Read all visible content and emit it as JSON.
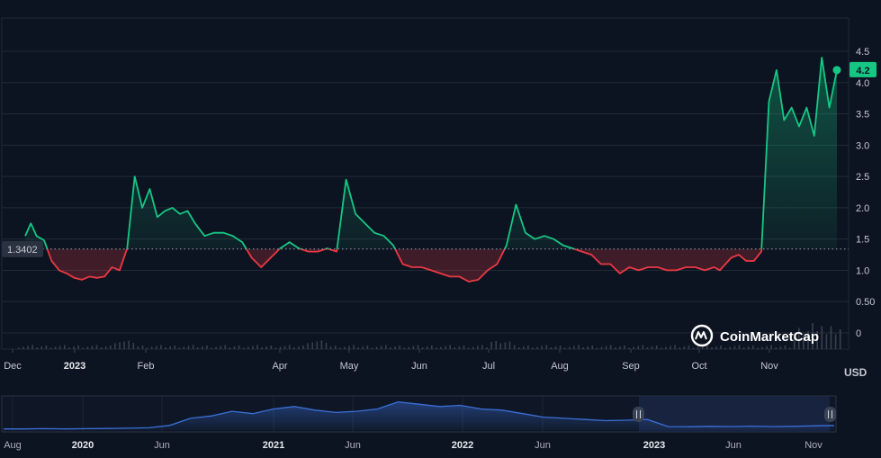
{
  "chart_data": {
    "type": "line",
    "unit": "USD",
    "reference_price": "1.3402",
    "current_price": "4.2",
    "colors": {
      "up": "#16c784",
      "down": "#ea3943",
      "background": "#0d1421",
      "grid": "#222a38",
      "navigator_line": "#3a6fd8"
    },
    "y_ticks": [
      "0",
      "0.50",
      "1.0",
      "1.5",
      "2.0",
      "2.5",
      "3.0",
      "3.5",
      "4.0",
      "4.5"
    ],
    "x_ticks": [
      {
        "label": "Dec",
        "bold": false
      },
      {
        "label": "2023",
        "bold": true
      },
      {
        "label": "Feb",
        "bold": false
      },
      {
        "label": "Apr",
        "bold": false
      },
      {
        "label": "May",
        "bold": false
      },
      {
        "label": "Jun",
        "bold": false
      },
      {
        "label": "Jul",
        "bold": false
      },
      {
        "label": "Aug",
        "bold": false
      },
      {
        "label": "Sep",
        "bold": false
      },
      {
        "label": "Oct",
        "bold": false
      },
      {
        "label": "Nov",
        "bold": false
      }
    ],
    "ylim": [
      0,
      4.7
    ],
    "x": [
      0,
      3,
      6,
      10,
      14,
      18,
      22,
      26,
      30,
      34,
      38,
      42,
      46,
      50,
      54,
      58,
      62,
      66,
      70,
      74,
      78,
      82,
      86,
      90,
      95,
      100,
      105,
      110,
      115,
      120,
      125,
      130,
      135,
      140,
      145,
      150,
      155,
      160,
      165,
      170,
      175,
      180,
      185,
      190,
      195,
      200,
      205,
      210,
      215,
      220,
      225,
      230,
      235,
      240,
      245,
      250,
      255,
      260,
      265,
      270,
      275,
      280,
      285,
      290,
      295,
      300,
      305,
      310,
      315,
      320,
      325,
      330,
      335,
      340,
      345,
      350,
      355,
      360,
      365,
      368,
      371,
      374,
      378,
      382,
      386,
      390,
      394,
      398,
      402,
      406,
      410,
      414,
      418,
      422,
      426,
      430
    ],
    "values": [
      1.55,
      1.75,
      1.55,
      1.48,
      1.15,
      1.0,
      0.95,
      0.88,
      0.85,
      0.9,
      0.88,
      0.9,
      1.05,
      1.0,
      1.35,
      2.5,
      2.0,
      2.3,
      1.85,
      1.95,
      2.0,
      1.9,
      1.95,
      1.75,
      1.55,
      1.6,
      1.6,
      1.55,
      1.45,
      1.2,
      1.05,
      1.2,
      1.35,
      1.45,
      1.35,
      1.3,
      1.3,
      1.35,
      1.3,
      2.45,
      1.9,
      1.75,
      1.6,
      1.55,
      1.4,
      1.1,
      1.05,
      1.05,
      1.0,
      0.95,
      0.9,
      0.9,
      0.82,
      0.85,
      1.0,
      1.1,
      1.4,
      2.05,
      1.6,
      1.5,
      1.55,
      1.5,
      1.4,
      1.35,
      1.3,
      1.25,
      1.1,
      1.1,
      0.95,
      1.05,
      1.0,
      1.05,
      1.05,
      1.0,
      1.0,
      1.05,
      1.05,
      1.0,
      1.05,
      1.0,
      1.1,
      1.2,
      1.25,
      1.15,
      1.15,
      1.3,
      3.7,
      4.2,
      3.4,
      3.6,
      3.3,
      3.6,
      3.15,
      4.4,
      3.6,
      4.2
    ],
    "volume_note": "",
    "navigator": {
      "x_ticks": [
        {
          "label": "Aug",
          "bold": false
        },
        {
          "label": "2020",
          "bold": true
        },
        {
          "label": "Jun",
          "bold": false
        },
        {
          "label": "2021",
          "bold": true
        },
        {
          "label": "Jun",
          "bold": false
        },
        {
          "label": "2022",
          "bold": true
        },
        {
          "label": "Jun",
          "bold": false
        },
        {
          "label": "2023",
          "bold": true
        },
        {
          "label": "Jun",
          "bold": false
        },
        {
          "label": "Nov",
          "bold": false
        }
      ],
      "values": [
        0.05,
        0.05,
        0.06,
        0.05,
        0.06,
        0.07,
        0.08,
        0.1,
        0.2,
        0.5,
        0.6,
        0.8,
        0.7,
        0.9,
        1.0,
        0.85,
        0.75,
        0.8,
        0.9,
        1.2,
        1.1,
        1.0,
        1.05,
        0.9,
        0.85,
        0.7,
        0.55,
        0.5,
        0.45,
        0.4,
        0.42,
        0.45,
        0.15,
        0.14,
        0.16,
        0.15,
        0.17,
        0.15,
        0.16,
        0.18,
        0.2
      ]
    }
  },
  "brand": {
    "name": "CoinMarketCap"
  }
}
